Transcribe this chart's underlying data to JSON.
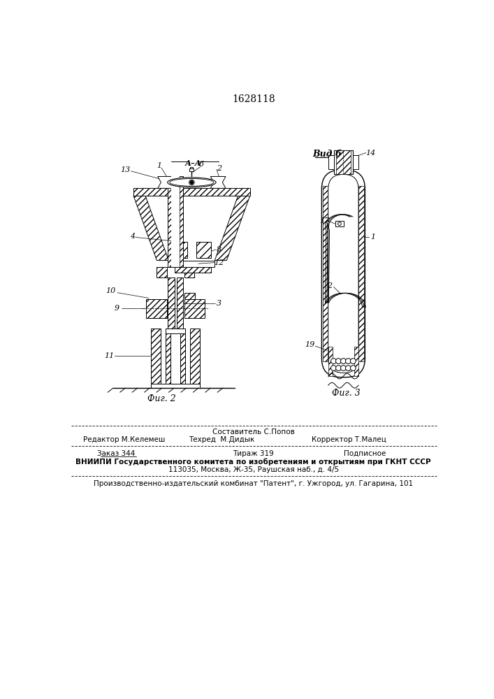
{
  "title_text": "1628118",
  "fig2_label": "Фиг. 2",
  "fig3_label": "Фиг. 3",
  "vid_b_label": "Вид б",
  "aa_label": "А–А",
  "bg_color": "#ffffff",
  "footer_col1_row1": "Редактор М.Келемеш",
  "footer_col2_row1": "Составитель С.Попов",
  "footer_col2_row2": "Техред  М.Дидык",
  "footer_col3_row2": "Корректор Т.Малец",
  "footer_zakaz": "Заказ 344",
  "footer_tirazh": "Тираж 319",
  "footer_podp": "Подписное",
  "footer_vniip1": "ВНИИПИ Государственного комитета по изобретениям и открытиям при ГКНТ СССР",
  "footer_vniip2": "113035, Москва, Ж-35, Раушская наб., д. 4/5",
  "footer_patent": "Производственно-издательский комбинат \"Патент\", г. Ужгород, ул. Гагарина, 101"
}
